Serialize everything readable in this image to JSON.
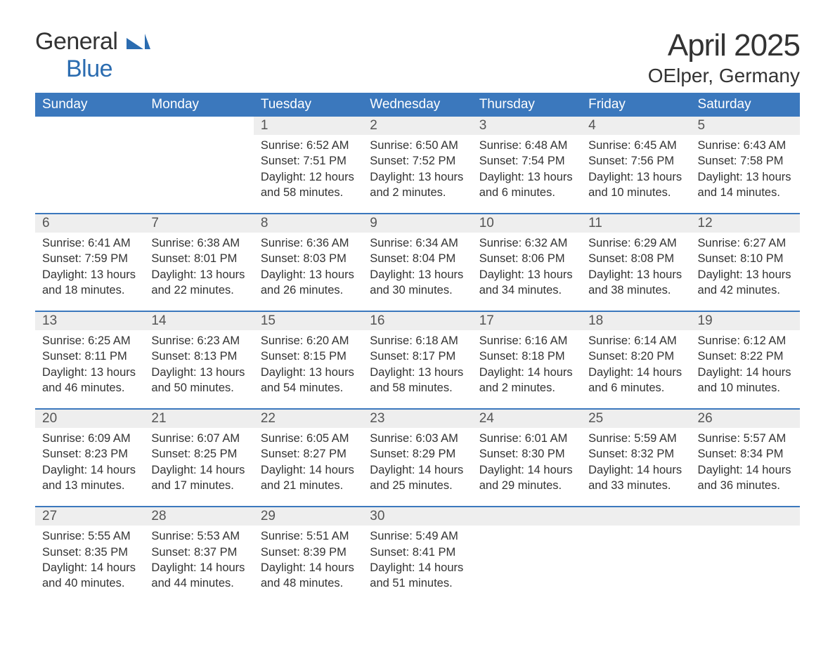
{
  "logo": {
    "text_general": "General",
    "text_blue": "Blue",
    "accent_color": "#2b6cb0"
  },
  "title": "April 2025",
  "location": "OElper, Germany",
  "colors": {
    "header_bg": "#3b78bd",
    "header_text": "#ffffff",
    "daynum_bg": "#eeeeee",
    "row_border": "#3b78bd",
    "body_text": "#333333",
    "page_bg": "#ffffff"
  },
  "typography": {
    "title_fontsize": 44,
    "location_fontsize": 28,
    "header_fontsize": 19,
    "daynum_fontsize": 19,
    "body_fontsize": 16.5
  },
  "layout": {
    "columns": 7,
    "rows": 5,
    "start_column_index": 2
  },
  "weekday_headers": [
    "Sunday",
    "Monday",
    "Tuesday",
    "Wednesday",
    "Thursday",
    "Friday",
    "Saturday"
  ],
  "days": [
    {
      "n": 1,
      "sunrise": "6:52 AM",
      "sunset": "7:51 PM",
      "daylight": "12 hours and 58 minutes."
    },
    {
      "n": 2,
      "sunrise": "6:50 AM",
      "sunset": "7:52 PM",
      "daylight": "13 hours and 2 minutes."
    },
    {
      "n": 3,
      "sunrise": "6:48 AM",
      "sunset": "7:54 PM",
      "daylight": "13 hours and 6 minutes."
    },
    {
      "n": 4,
      "sunrise": "6:45 AM",
      "sunset": "7:56 PM",
      "daylight": "13 hours and 10 minutes."
    },
    {
      "n": 5,
      "sunrise": "6:43 AM",
      "sunset": "7:58 PM",
      "daylight": "13 hours and 14 minutes."
    },
    {
      "n": 6,
      "sunrise": "6:41 AM",
      "sunset": "7:59 PM",
      "daylight": "13 hours and 18 minutes."
    },
    {
      "n": 7,
      "sunrise": "6:38 AM",
      "sunset": "8:01 PM",
      "daylight": "13 hours and 22 minutes."
    },
    {
      "n": 8,
      "sunrise": "6:36 AM",
      "sunset": "8:03 PM",
      "daylight": "13 hours and 26 minutes."
    },
    {
      "n": 9,
      "sunrise": "6:34 AM",
      "sunset": "8:04 PM",
      "daylight": "13 hours and 30 minutes."
    },
    {
      "n": 10,
      "sunrise": "6:32 AM",
      "sunset": "8:06 PM",
      "daylight": "13 hours and 34 minutes."
    },
    {
      "n": 11,
      "sunrise": "6:29 AM",
      "sunset": "8:08 PM",
      "daylight": "13 hours and 38 minutes."
    },
    {
      "n": 12,
      "sunrise": "6:27 AM",
      "sunset": "8:10 PM",
      "daylight": "13 hours and 42 minutes."
    },
    {
      "n": 13,
      "sunrise": "6:25 AM",
      "sunset": "8:11 PM",
      "daylight": "13 hours and 46 minutes."
    },
    {
      "n": 14,
      "sunrise": "6:23 AM",
      "sunset": "8:13 PM",
      "daylight": "13 hours and 50 minutes."
    },
    {
      "n": 15,
      "sunrise": "6:20 AM",
      "sunset": "8:15 PM",
      "daylight": "13 hours and 54 minutes."
    },
    {
      "n": 16,
      "sunrise": "6:18 AM",
      "sunset": "8:17 PM",
      "daylight": "13 hours and 58 minutes."
    },
    {
      "n": 17,
      "sunrise": "6:16 AM",
      "sunset": "8:18 PM",
      "daylight": "14 hours and 2 minutes."
    },
    {
      "n": 18,
      "sunrise": "6:14 AM",
      "sunset": "8:20 PM",
      "daylight": "14 hours and 6 minutes."
    },
    {
      "n": 19,
      "sunrise": "6:12 AM",
      "sunset": "8:22 PM",
      "daylight": "14 hours and 10 minutes."
    },
    {
      "n": 20,
      "sunrise": "6:09 AM",
      "sunset": "8:23 PM",
      "daylight": "14 hours and 13 minutes."
    },
    {
      "n": 21,
      "sunrise": "6:07 AM",
      "sunset": "8:25 PM",
      "daylight": "14 hours and 17 minutes."
    },
    {
      "n": 22,
      "sunrise": "6:05 AM",
      "sunset": "8:27 PM",
      "daylight": "14 hours and 21 minutes."
    },
    {
      "n": 23,
      "sunrise": "6:03 AM",
      "sunset": "8:29 PM",
      "daylight": "14 hours and 25 minutes."
    },
    {
      "n": 24,
      "sunrise": "6:01 AM",
      "sunset": "8:30 PM",
      "daylight": "14 hours and 29 minutes."
    },
    {
      "n": 25,
      "sunrise": "5:59 AM",
      "sunset": "8:32 PM",
      "daylight": "14 hours and 33 minutes."
    },
    {
      "n": 26,
      "sunrise": "5:57 AM",
      "sunset": "8:34 PM",
      "daylight": "14 hours and 36 minutes."
    },
    {
      "n": 27,
      "sunrise": "5:55 AM",
      "sunset": "8:35 PM",
      "daylight": "14 hours and 40 minutes."
    },
    {
      "n": 28,
      "sunrise": "5:53 AM",
      "sunset": "8:37 PM",
      "daylight": "14 hours and 44 minutes."
    },
    {
      "n": 29,
      "sunrise": "5:51 AM",
      "sunset": "8:39 PM",
      "daylight": "14 hours and 48 minutes."
    },
    {
      "n": 30,
      "sunrise": "5:49 AM",
      "sunset": "8:41 PM",
      "daylight": "14 hours and 51 minutes."
    }
  ],
  "labels": {
    "sunrise": "Sunrise:",
    "sunset": "Sunset:",
    "daylight": "Daylight:"
  }
}
